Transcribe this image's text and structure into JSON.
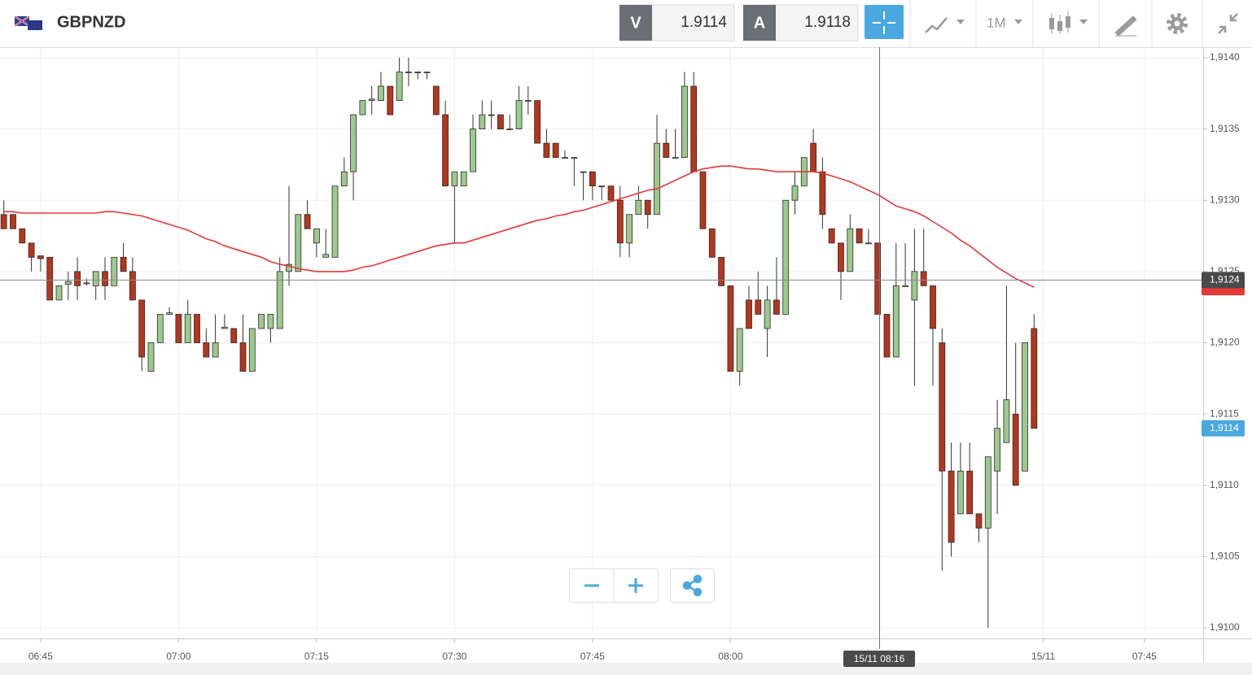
{
  "toolbar": {
    "symbol": "GBPNZD",
    "sell_label": "V",
    "sell_price": "1.9114",
    "buy_label": "A",
    "buy_price": "1.9118",
    "timeframe": "1M"
  },
  "chart_data": {
    "type": "candlestick",
    "categories": [
      null,
      null,
      null,
      null,
      "06:45",
      null,
      null,
      null,
      null,
      null,
      null,
      null,
      null,
      null,
      null,
      null,
      null,
      null,
      null,
      "07:00",
      null,
      null,
      null,
      null,
      null,
      null,
      null,
      null,
      null,
      null,
      null,
      null,
      null,
      null,
      "07:15",
      null,
      null,
      null,
      null,
      null,
      null,
      null,
      null,
      null,
      null,
      null,
      null,
      null,
      null,
      "07:30",
      null,
      null,
      null,
      null,
      null,
      null,
      null,
      null,
      null,
      null,
      null,
      null,
      null,
      null,
      "07:45",
      null,
      null,
      null,
      null,
      null,
      null,
      null,
      null,
      null,
      null,
      null,
      null,
      null,
      null,
      "08:00",
      null,
      null,
      null,
      null,
      null,
      null,
      null,
      null,
      null,
      null,
      null,
      null,
      null,
      null,
      null,
      null,
      null,
      null,
      null,
      null,
      null,
      null,
      null,
      null,
      null,
      null,
      null,
      null,
      null,
      null,
      null,
      null,
      null,
      "15/11",
      null,
      null,
      null,
      null,
      null,
      null,
      null,
      null,
      null,
      null,
      "07:45"
    ],
    "open": [
      1.9129,
      1.9129,
      1.9128,
      1.9127,
      1.91261,
      1.9126,
      1.9123,
      1.91241,
      1.9125,
      1.91242,
      1.9124,
      1.9125,
      1.9124,
      1.9126,
      1.9125,
      1.9123,
      1.9118,
      1.912,
      1.9122,
      1.9122,
      1.912,
      1.9122,
      1.912,
      1.9119,
      1.9121,
      1.9121,
      1.912,
      1.9118,
      1.9121,
      1.9121,
      1.9121,
      1.9125,
      1.9125,
      1.9129,
      1.9127,
      1.9126,
      1.9126,
      1.9131,
      1.9132,
      1.9136,
      1.9137,
      1.9137,
      1.9138,
      1.9137,
      1.9139,
      1.9139,
      1.9139,
      1.9138,
      1.9136,
      1.9131,
      1.9131,
      1.9132,
      1.9135,
      1.9136,
      1.9136,
      1.9135,
      1.9135,
      1.9137,
      1.9137,
      1.9134,
      1.9134,
      1.9133,
      1.9133,
      1.9132,
      1.9132,
      1.9131,
      1.9131,
      1.913,
      1.9127,
      1.9129,
      1.913,
      1.9129,
      1.9134,
      1.9133,
      1.9133,
      1.9138,
      1.9132,
      1.9128,
      1.9126,
      1.9124,
      1.9118,
      1.9123,
      1.9123,
      1.9121,
      1.9123,
      1.9122,
      1.913,
      1.9131,
      1.9134,
      1.9132,
      1.9128,
      1.9127,
      1.9125,
      1.9128,
      1.9127,
      1.9127,
      1.9122,
      1.9119,
      1.9124,
      1.9123,
      1.9125,
      1.9124,
      1.912,
      1.9111,
      1.9108,
      1.9111,
      1.9108,
      1.9107,
      1.9111,
      1.9113,
      1.9115,
      1.9111,
      1.9121,
      null,
      null,
      null,
      null,
      null,
      null,
      null,
      null,
      null,
      null,
      null,
      null
    ],
    "high": [
      1.913,
      1.9129,
      1.9128,
      1.9127,
      1.91261,
      1.9126,
      1.9124,
      1.9125,
      1.9126,
      1.91245,
      1.9125,
      1.9126,
      1.9126,
      1.9127,
      1.9126,
      1.9123,
      1.912,
      1.9122,
      1.91225,
      1.9122,
      1.9123,
      1.9122,
      1.9121,
      1.9122,
      1.9122,
      1.9121,
      1.9122,
      1.9121,
      1.9122,
      1.9122,
      1.9126,
      1.9131,
      1.9129,
      1.913,
      1.9128,
      1.9128,
      1.9131,
      1.9133,
      1.9136,
      1.9137,
      1.9138,
      1.9139,
      1.9138,
      1.914,
      1.914,
      1.9139,
      1.9139,
      1.9138,
      1.9137,
      1.9132,
      1.9132,
      1.9136,
      1.9137,
      1.9137,
      1.9136,
      1.9136,
      1.9138,
      1.9138,
      1.9137,
      1.9135,
      1.9134,
      1.91335,
      1.9133,
      1.9132,
      1.9132,
      1.9131,
      1.9131,
      1.9131,
      1.9129,
      1.9131,
      1.913,
      1.9136,
      1.9135,
      1.9135,
      1.9139,
      1.9139,
      1.9132,
      1.9128,
      1.9126,
      1.9124,
      1.9121,
      1.9124,
      1.9125,
      1.9124,
      1.9126,
      1.913,
      1.9132,
      1.9133,
      1.9135,
      1.9133,
      1.9128,
      1.9127,
      1.9129,
      1.9128,
      1.9128,
      1.9127,
      1.9122,
      1.9127,
      1.9127,
      1.9128,
      1.9128,
      1.9124,
      1.9121,
      1.9113,
      1.9113,
      1.9113,
      1.9108,
      1.9112,
      1.9116,
      1.9124,
      1.912,
      1.912,
      1.9122,
      null,
      null,
      null,
      null,
      null,
      null,
      null,
      null,
      null,
      null,
      null,
      null
    ],
    "low": [
      1.9128,
      1.9128,
      1.9127,
      1.9125,
      1.9125,
      1.9123,
      1.9123,
      1.9123,
      1.9123,
      1.9124,
      1.9123,
      1.9123,
      1.9124,
      1.9125,
      1.9123,
      1.9118,
      1.9118,
      1.912,
      1.9122,
      1.912,
      1.912,
      1.912,
      1.9119,
      1.9119,
      1.9121,
      1.912,
      1.9118,
      1.9118,
      1.9121,
      1.912,
      1.9121,
      1.9124,
      1.9125,
      1.9128,
      1.9126,
      1.9126,
      1.9126,
      1.9131,
      1.913,
      1.9136,
      1.9136,
      1.9137,
      1.9136,
      1.9137,
      1.9138,
      1.91385,
      1.91385,
      1.9136,
      1.9131,
      1.9127,
      1.9131,
      1.9132,
      1.9135,
      1.9135,
      1.9135,
      1.9135,
      1.9135,
      1.9136,
      1.9134,
      1.9133,
      1.9133,
      1.9133,
      1.9131,
      1.913,
      1.913,
      1.913,
      1.913,
      1.9126,
      1.9126,
      1.9129,
      1.9128,
      1.9129,
      1.9133,
      1.9133,
      1.9133,
      1.9132,
      1.9128,
      1.9126,
      1.9124,
      1.9118,
      1.9117,
      1.9121,
      1.9122,
      1.9119,
      1.9122,
      1.9122,
      1.9129,
      1.9131,
      1.9132,
      1.9128,
      1.9127,
      1.9123,
      1.9125,
      1.9127,
      1.9127,
      1.9122,
      1.9119,
      1.9119,
      1.9124,
      1.9117,
      1.9124,
      1.9117,
      1.9104,
      1.9105,
      1.9108,
      1.9108,
      1.9106,
      1.91,
      1.9108,
      1.9113,
      1.911,
      1.9111,
      1.9114,
      null,
      null,
      null,
      null,
      null,
      null,
      null,
      null,
      null,
      null,
      null,
      null
    ],
    "close": [
      1.9128,
      1.9128,
      1.9127,
      1.9126,
      1.91259,
      1.9123,
      1.9124,
      1.91243,
      1.9124,
      1.91242,
      1.9125,
      1.9124,
      1.9126,
      1.9125,
      1.9123,
      1.9119,
      1.912,
      1.9122,
      1.91221,
      1.912,
      1.9122,
      1.912,
      1.9119,
      1.912,
      1.91211,
      1.912,
      1.9118,
      1.9121,
      1.9122,
      1.9122,
      1.9125,
      1.91255,
      1.9129,
      1.9128,
      1.9128,
      1.91262,
      1.9131,
      1.9132,
      1.9136,
      1.9137,
      1.91371,
      1.9138,
      1.9136,
      1.9139,
      1.9139,
      1.9139,
      1.9139,
      1.9136,
      1.9131,
      1.9132,
      1.9132,
      1.9135,
      1.9136,
      1.9136,
      1.9135,
      1.9135,
      1.9137,
      1.9137,
      1.9134,
      1.9133,
      1.9133,
      1.9133,
      1.9133,
      1.9132,
      1.9131,
      1.9131,
      1.913,
      1.9127,
      1.9129,
      1.913,
      1.9129,
      1.9134,
      1.9133,
      1.9133,
      1.9138,
      1.9132,
      1.9128,
      1.9126,
      1.9124,
      1.9118,
      1.9121,
      1.9121,
      1.9122,
      1.9123,
      1.9122,
      1.913,
      1.9131,
      1.9133,
      1.9132,
      1.9129,
      1.9127,
      1.9125,
      1.9128,
      1.9127,
      1.9127,
      1.9122,
      1.9119,
      1.9124,
      1.9124,
      1.9125,
      1.9124,
      1.9121,
      1.9111,
      1.9106,
      1.9111,
      1.9108,
      1.9107,
      1.9112,
      1.9114,
      1.9116,
      1.911,
      1.912,
      1.9114,
      null,
      null,
      null,
      null,
      null,
      null,
      null,
      null,
      null,
      null,
      null,
      null
    ],
    "up_color": "#9cc98c",
    "down_color": "#b5361c",
    "moving_average": {
      "color": "#e53935",
      "values": [
        1.91292,
        1.91292,
        1.91291,
        1.91291,
        1.91291,
        1.91291,
        1.91291,
        1.91291,
        1.91291,
        1.91291,
        1.91291,
        1.91292,
        1.91292,
        1.91291,
        1.9129,
        1.91289,
        1.91287,
        1.91285,
        1.91283,
        1.91281,
        1.91279,
        1.91276,
        1.91273,
        1.91271,
        1.91268,
        1.91266,
        1.91264,
        1.91262,
        1.9126,
        1.91257,
        1.91255,
        1.91254,
        1.91252,
        1.91251,
        1.9125,
        1.9125,
        1.9125,
        1.9125,
        1.91251,
        1.91253,
        1.91254,
        1.91256,
        1.91258,
        1.9126,
        1.91262,
        1.91264,
        1.91266,
        1.91268,
        1.91269,
        1.9127,
        1.9127,
        1.91272,
        1.91274,
        1.91276,
        1.91278,
        1.9128,
        1.91282,
        1.91284,
        1.91286,
        1.91287,
        1.91289,
        1.9129,
        1.91292,
        1.91293,
        1.91295,
        1.91297,
        1.91299,
        1.91301,
        1.91303,
        1.91305,
        1.91307,
        1.91308,
        1.91311,
        1.91314,
        1.91317,
        1.9132,
        1.91322,
        1.91323,
        1.91324,
        1.91324,
        1.91323,
        1.91322,
        1.91322,
        1.91321,
        1.9132,
        1.9132,
        1.9132,
        1.9132,
        1.9132,
        1.91319,
        1.91317,
        1.91315,
        1.91313,
        1.9131,
        1.91307,
        1.91304,
        1.913,
        1.91296,
        1.91294,
        1.91292,
        1.91289,
        1.91285,
        1.91281,
        1.91277,
        1.91272,
        1.91268,
        1.91263,
        1.91258,
        1.91253,
        1.91249,
        1.91245,
        1.91242,
        1.91239,
        null,
        null,
        null,
        null,
        null,
        null,
        null,
        null,
        null,
        null,
        null,
        null
      ]
    },
    "ylim": [
      1.909926,
      1.914074
    ],
    "yticks": [
      {
        "value": 1.91,
        "label": "1,9100"
      },
      {
        "value": 1.9105,
        "label": "1,9105"
      },
      {
        "value": 1.911,
        "label": "1,9110"
      },
      {
        "value": 1.9115,
        "label": "1,9115"
      },
      {
        "value": 1.912,
        "label": "1,9120"
      },
      {
        "value": 1.9125,
        "label": "1,9125"
      },
      {
        "value": 1.913,
        "label": "1,9130"
      },
      {
        "value": 1.9135,
        "label": "1,9135"
      },
      {
        "value": 1.914,
        "label": "1,9140"
      }
    ],
    "grid": true,
    "crosshair": {
      "x_label": "15/11 08:16",
      "y": 1.91244,
      "y_label": "1,9124"
    },
    "last_price": {
      "value": 1.9114,
      "label": "1,9114",
      "color": "#4aa8e0"
    }
  }
}
